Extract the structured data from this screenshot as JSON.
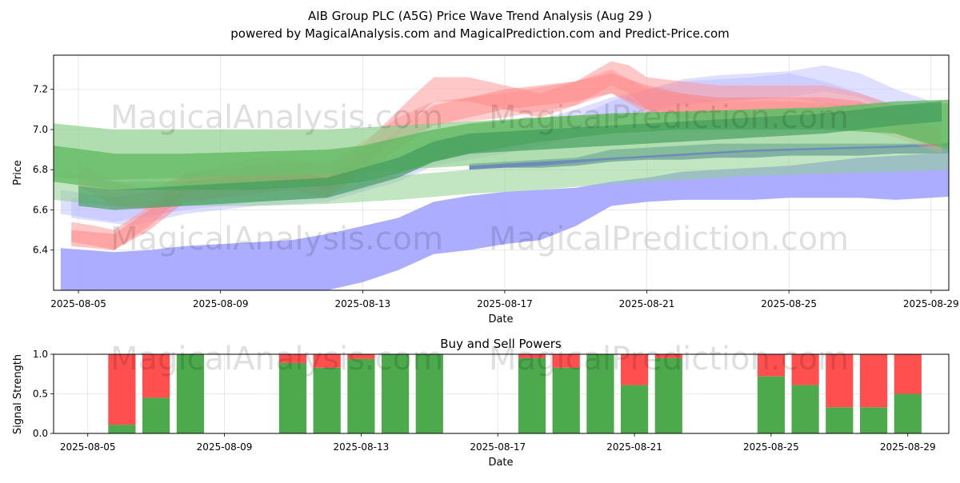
{
  "title_line1": "AIB Group PLC (A5G) Price Wave Trend Analysis (Aug 29 )",
  "title_line2": "powered by MagicalAnalysis.com and MagicalPrediction.com and Predict-Price.com",
  "watermark_left": "MagicalAnalysis.com",
  "watermark_right": "MagicalPrediction.com",
  "colors": {
    "buy": "#4caa4c",
    "sell": "#ff4f4f",
    "blue_band": "#a9a9ff",
    "red_band": "#ff9a9a",
    "green_band": "#5fb85f"
  },
  "chart_data": [
    {
      "type": "area",
      "title": "",
      "xlabel": "Date",
      "ylabel": "Price",
      "ylim": [
        6.2,
        7.37
      ],
      "x_tick_labels": [
        "2025-08-05",
        "2025-08-09",
        "2025-08-13",
        "2025-08-17",
        "2025-08-21",
        "2025-08-25",
        "2025-08-29"
      ],
      "y_tick_labels": [
        "6.4",
        "6.6",
        "6.8",
        "7.0",
        "7.2"
      ],
      "x_day_range": [
        4.3,
        29.5
      ],
      "series": [
        {
          "name": "blue-wide",
          "color": "#a9a9ff",
          "opacity": 0.95,
          "x": [
            4.5,
            6.0,
            7.0,
            8.0,
            9.0,
            10.0,
            11.0,
            12.0,
            13.0,
            14.0,
            15.0,
            16.0,
            17.0,
            18.0,
            19.0,
            20.0,
            21.0,
            22.0,
            23.0,
            24.0,
            25.0,
            26.0,
            27.0,
            28.0,
            29.0,
            29.8
          ],
          "upper": [
            6.41,
            6.39,
            6.4,
            6.42,
            6.43,
            6.44,
            6.45,
            6.48,
            6.52,
            6.56,
            6.64,
            6.67,
            6.69,
            6.7,
            6.71,
            6.74,
            6.76,
            6.79,
            6.8,
            6.81,
            6.82,
            6.84,
            6.86,
            6.87,
            6.88,
            6.88
          ],
          "lower": [
            6.2,
            6.2,
            6.2,
            6.2,
            6.2,
            6.2,
            6.2,
            6.2,
            6.24,
            6.3,
            6.38,
            6.4,
            6.43,
            6.45,
            6.52,
            6.62,
            6.64,
            6.65,
            6.65,
            6.65,
            6.66,
            6.66,
            6.66,
            6.65,
            6.66,
            6.67
          ]
        },
        {
          "name": "blue-dark",
          "color": "#4a6fa5",
          "opacity": 0.8,
          "x": [
            16.0,
            17.0,
            18.0,
            19.0,
            20.0,
            21.0,
            22.0,
            23.0,
            24.0,
            25.0,
            26.0,
            27.0,
            28.0,
            29.0,
            29.8
          ],
          "upper": [
            6.83,
            6.84,
            6.85,
            6.86,
            6.9,
            6.91,
            6.92,
            6.93,
            6.93,
            6.93,
            6.93,
            6.93,
            6.93,
            6.93,
            6.94
          ],
          "lower": [
            6.8,
            6.81,
            6.81,
            6.82,
            6.84,
            6.85,
            6.85,
            6.86,
            6.86,
            6.87,
            6.87,
            6.87,
            6.88,
            6.88,
            6.88
          ]
        },
        {
          "name": "blue-light-1",
          "color": "#b9b9ff",
          "opacity": 0.45,
          "x": [
            4.5,
            6.0,
            8.0,
            10.0,
            12.0,
            13.0,
            14.0,
            15.0,
            17.0,
            18.0,
            19.0,
            20.0,
            21.0,
            22.0,
            23.0,
            24.0,
            25.0,
            26.0,
            27.0,
            28.0,
            29.0,
            29.3
          ],
          "upper": [
            6.7,
            6.66,
            6.72,
            6.76,
            6.78,
            6.82,
            6.88,
            6.96,
            7.01,
            7.05,
            7.1,
            7.16,
            7.2,
            7.25,
            7.27,
            7.28,
            7.29,
            7.32,
            7.28,
            7.2,
            7.14,
            7.1
          ],
          "lower": [
            6.58,
            6.54,
            6.6,
            6.64,
            6.66,
            6.7,
            6.76,
            6.84,
            6.9,
            6.94,
            6.99,
            7.04,
            7.08,
            7.12,
            7.14,
            7.15,
            7.16,
            7.19,
            7.16,
            7.08,
            7.03,
            7.0
          ]
        },
        {
          "name": "blue-light-2",
          "color": "#b9b9ff",
          "opacity": 0.45,
          "x": [
            4.8,
            6.5,
            8.0,
            10.0,
            12.0,
            14.0,
            15.0,
            17.0,
            19.0,
            20.0,
            21.0,
            22.0,
            24.0,
            25.0,
            26.0,
            27.0,
            28.0,
            29.0,
            29.3
          ],
          "upper": [
            6.66,
            6.62,
            6.68,
            6.72,
            6.74,
            6.84,
            6.92,
            6.98,
            7.06,
            7.14,
            7.2,
            7.24,
            7.26,
            7.28,
            7.24,
            7.18,
            7.12,
            7.06,
            7.04
          ],
          "lower": [
            6.56,
            6.52,
            6.58,
            6.62,
            6.64,
            6.74,
            6.82,
            6.88,
            6.96,
            7.04,
            7.1,
            7.13,
            7.15,
            7.16,
            7.13,
            7.08,
            7.02,
            6.97,
            6.95
          ]
        },
        {
          "name": "red-1",
          "color": "#ff9a9a",
          "opacity": 0.55,
          "x": [
            4.8,
            5.5,
            6.0,
            7.0,
            8.0,
            9.0,
            10.0,
            11.0,
            12.0,
            13.0,
            13.8,
            14.5,
            15.0,
            16.0,
            17.0,
            18.0,
            19.0,
            20.0,
            20.5,
            21.0,
            22.0,
            23.0,
            24.0,
            25.0,
            26.0,
            27.0,
            28.0,
            28.5,
            29.3
          ],
          "upper": [
            6.54,
            6.52,
            6.5,
            6.62,
            6.78,
            6.8,
            6.82,
            6.84,
            6.82,
            6.92,
            7.06,
            7.18,
            7.26,
            7.26,
            7.22,
            7.18,
            7.24,
            7.34,
            7.32,
            7.26,
            7.24,
            7.22,
            7.22,
            7.22,
            7.22,
            7.18,
            7.12,
            7.04,
            7.0
          ],
          "lower": [
            6.44,
            6.42,
            6.4,
            6.52,
            6.68,
            6.7,
            6.72,
            6.74,
            6.7,
            6.8,
            6.94,
            7.06,
            7.14,
            7.14,
            7.1,
            7.06,
            7.12,
            7.22,
            7.18,
            7.1,
            7.06,
            7.04,
            7.06,
            7.08,
            7.08,
            7.06,
            7.02,
            6.96,
            6.92
          ]
        },
        {
          "name": "red-2",
          "color": "#ff7a7a",
          "opacity": 0.45,
          "x": [
            4.8,
            6.0,
            7.0,
            8.0,
            9.0,
            10.0,
            11.0,
            12.0,
            13.0,
            14.0,
            15.0,
            16.0,
            17.0,
            18.0,
            19.0,
            20.0,
            21.0,
            22.0,
            23.0,
            24.0,
            25.0,
            26.0,
            27.0,
            28.0,
            29.3
          ],
          "upper": [
            6.5,
            6.48,
            6.6,
            6.74,
            6.76,
            6.78,
            6.8,
            6.76,
            6.88,
            7.0,
            7.12,
            7.16,
            7.2,
            7.22,
            7.24,
            7.28,
            7.22,
            7.18,
            7.16,
            7.16,
            7.16,
            7.16,
            7.14,
            7.08,
            7.0
          ],
          "lower": [
            6.42,
            6.4,
            6.5,
            6.64,
            6.66,
            6.68,
            6.7,
            6.66,
            6.78,
            6.9,
            7.02,
            7.06,
            7.1,
            7.12,
            7.14,
            7.18,
            7.1,
            7.06,
            7.04,
            7.04,
            7.04,
            7.04,
            7.04,
            6.98,
            6.9
          ]
        },
        {
          "name": "red-3",
          "color": "#ff8a8a",
          "opacity": 0.4,
          "x": [
            5.0,
            6.0,
            7.0,
            8.0,
            10.0,
            12.0,
            13.0,
            14.0,
            15.0,
            17.0,
            19.0,
            20.0,
            21.0,
            23.0,
            25.0,
            27.0,
            28.0,
            29.3
          ],
          "upper": [
            6.84,
            6.74,
            6.7,
            6.78,
            6.86,
            6.84,
            6.94,
            7.06,
            7.14,
            7.18,
            7.24,
            7.3,
            7.2,
            7.14,
            7.14,
            7.12,
            7.06,
            6.98
          ],
          "lower": [
            6.72,
            6.62,
            6.6,
            6.68,
            6.76,
            6.72,
            6.82,
            6.94,
            7.02,
            7.06,
            7.12,
            7.18,
            7.08,
            7.02,
            7.02,
            7.0,
            6.96,
            6.88
          ]
        },
        {
          "name": "green-light",
          "color": "#8fd08f",
          "opacity": 0.7,
          "x": [
            4.3,
            6.0,
            8.0,
            10.0,
            12.0,
            14.0,
            16.0,
            18.0,
            20.0,
            22.0,
            24.0,
            26.0,
            28.0,
            29.5
          ],
          "upper": [
            7.03,
            7.0,
            7.0,
            7.0,
            7.0,
            7.02,
            7.04,
            7.06,
            7.08,
            7.09,
            7.1,
            7.11,
            7.12,
            7.13
          ],
          "lower": [
            6.76,
            6.75,
            6.76,
            6.77,
            6.78,
            6.8,
            6.82,
            6.84,
            6.86,
            6.88,
            6.9,
            6.91,
            6.92,
            6.93
          ]
        },
        {
          "name": "green-light-2",
          "color": "#8fd08f",
          "opacity": 0.55,
          "x": [
            4.3,
            6.0,
            8.0,
            10.0,
            12.0,
            14.0,
            16.0,
            18.0,
            20.0,
            22.0,
            24.0,
            26.0,
            28.0,
            29.5
          ],
          "upper": [
            6.8,
            6.74,
            6.74,
            6.74,
            6.74,
            6.77,
            6.8,
            6.82,
            6.85,
            6.87,
            6.89,
            6.9,
            6.91,
            6.92
          ],
          "lower": [
            6.65,
            6.62,
            6.62,
            6.62,
            6.63,
            6.65,
            6.68,
            6.7,
            6.73,
            6.75,
            6.77,
            6.78,
            6.79,
            6.8
          ]
        },
        {
          "name": "green-mid",
          "color": "#5fb85f",
          "opacity": 0.75,
          "x": [
            4.3,
            6.0,
            8.0,
            10.0,
            12.0,
            13.0,
            14.0,
            15.0,
            16.0,
            18.0,
            20.0,
            22.0,
            24.0,
            26.0,
            28.0,
            29.8
          ],
          "upper": [
            6.92,
            6.88,
            6.88,
            6.89,
            6.9,
            6.92,
            6.96,
            7.0,
            7.03,
            7.06,
            7.08,
            7.09,
            7.1,
            7.11,
            7.14,
            7.15
          ],
          "lower": [
            6.74,
            6.7,
            6.7,
            6.7,
            6.72,
            6.74,
            6.78,
            6.84,
            6.88,
            6.94,
            6.98,
            7.0,
            7.0,
            7.0,
            6.98,
            6.88
          ]
        },
        {
          "name": "green-dark",
          "color": "#3f9a5a",
          "opacity": 0.65,
          "x": [
            5.0,
            6.0,
            8.0,
            10.0,
            12.0,
            14.0,
            15.0,
            16.0,
            18.0,
            20.0,
            22.0,
            24.0,
            26.0,
            28.0,
            29.3
          ],
          "upper": [
            6.72,
            6.7,
            6.72,
            6.74,
            6.76,
            6.86,
            6.94,
            6.98,
            7.0,
            7.02,
            7.04,
            7.06,
            7.08,
            7.12,
            7.14
          ],
          "lower": [
            6.62,
            6.6,
            6.62,
            6.64,
            6.66,
            6.76,
            6.84,
            6.88,
            6.9,
            6.92,
            6.94,
            6.96,
            6.98,
            7.02,
            7.04
          ]
        }
      ]
    },
    {
      "type": "bar",
      "title": "Buy and Sell Powers",
      "xlabel": "Date",
      "ylabel": "Signal Strength",
      "ylim": [
        0,
        1.0
      ],
      "x_tick_labels": [
        "2025-08-05",
        "2025-08-09",
        "2025-08-13",
        "2025-08-17",
        "2025-08-21",
        "2025-08-25",
        "2025-08-29"
      ],
      "y_tick_labels": [
        "0.0",
        "0.5",
        "1.0"
      ],
      "x_day_range": [
        4.0,
        30.2
      ],
      "categories": [
        6,
        7,
        8,
        11,
        12,
        13,
        14,
        15,
        18,
        19,
        20,
        21,
        22,
        25,
        26,
        27,
        28,
        29
      ],
      "series": [
        {
          "name": "Buy",
          "color": "#4caa4c",
          "values": [
            0.11,
            0.45,
            1.0,
            0.89,
            0.83,
            0.94,
            1.0,
            1.0,
            0.95,
            0.83,
            1.0,
            0.61,
            0.95,
            0.72,
            0.61,
            0.33,
            0.33,
            0.5
          ]
        },
        {
          "name": "Sell",
          "color": "#ff4f4f",
          "values": [
            0.89,
            0.55,
            0.0,
            0.11,
            0.17,
            0.06,
            0.0,
            0.0,
            0.05,
            0.17,
            0.0,
            0.39,
            0.05,
            0.28,
            0.39,
            0.67,
            0.67,
            0.5
          ]
        }
      ]
    }
  ]
}
